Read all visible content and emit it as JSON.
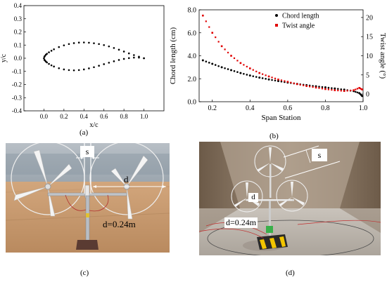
{
  "panels": {
    "a": {
      "label": "(a)",
      "chart_data": {
        "type": "scatter",
        "xlabel": "x/c",
        "ylabel": "y/c",
        "xlim": [
          -0.2,
          1.2
        ],
        "ylim": [
          -0.4,
          0.4
        ],
        "xticks": [
          "0.0",
          "0.2",
          "0.4",
          "0.6",
          "0.8",
          "1.0"
        ],
        "yticks": [
          "-0.4",
          "-0.3",
          "-0.2",
          "-0.1",
          "0.0",
          "0.1",
          "0.2",
          "0.3",
          "0.4"
        ],
        "x": [
          1.0,
          0.95,
          0.9,
          0.85,
          0.8,
          0.75,
          0.7,
          0.65,
          0.6,
          0.55,
          0.5,
          0.45,
          0.4,
          0.35,
          0.3,
          0.25,
          0.2,
          0.15,
          0.1,
          0.075,
          0.05,
          0.03,
          0.02,
          0.01,
          0.005,
          0.0,
          0.005,
          0.01,
          0.02,
          0.03,
          0.05,
          0.075,
          0.1,
          0.15,
          0.2,
          0.25,
          0.3,
          0.35,
          0.4,
          0.45,
          0.5,
          0.55,
          0.6,
          0.65,
          0.7,
          0.75,
          0.8,
          0.85,
          0.9,
          0.95,
          1.0
        ],
        "y": [
          0.0,
          0.012,
          0.024,
          0.037,
          0.051,
          0.065,
          0.078,
          0.09,
          0.1,
          0.108,
          0.114,
          0.118,
          0.12,
          0.119,
          0.115,
          0.108,
          0.098,
          0.085,
          0.068,
          0.057,
          0.045,
          0.034,
          0.027,
          0.018,
          0.012,
          0.0,
          -0.012,
          -0.017,
          -0.025,
          -0.032,
          -0.043,
          -0.054,
          -0.063,
          -0.076,
          -0.085,
          -0.09,
          -0.092,
          -0.09,
          -0.085,
          -0.077,
          -0.068,
          -0.057,
          -0.045,
          -0.034,
          -0.023,
          -0.013,
          -0.005,
          0.001,
          0.005,
          0.005,
          0.0
        ]
      }
    },
    "b": {
      "label": "(b)",
      "chart_data": {
        "type": "scatter",
        "xlabel": "Span Station",
        "ylabel": "Chord length (cm)",
        "y2label": "Twist angle (°)",
        "xlim": [
          0.13,
          1.0
        ],
        "ylim": [
          0.0,
          8.0
        ],
        "y2lim": [
          -2.0,
          22.0
        ],
        "xticks": [
          "0.2",
          "0.4",
          "0.6",
          "0.8",
          "1.0"
        ],
        "yticks": [
          "0.0",
          "2.0",
          "4.0",
          "6.0",
          "8.0"
        ],
        "y2ticks": [
          "0",
          "5",
          "10",
          "15",
          "20"
        ],
        "legend_position": "top-right",
        "series": [
          {
            "name": "Chord length",
            "axis": "left",
            "color": "#000000",
            "x": [
              0.15,
              0.2,
              0.25,
              0.3,
              0.35,
              0.4,
              0.45,
              0.5,
              0.55,
              0.6,
              0.65,
              0.7,
              0.75,
              0.8,
              0.85,
              0.9,
              0.95,
              0.98,
              0.995
            ],
            "y": [
              3.6,
              3.3,
              3.0,
              2.75,
              2.5,
              2.28,
              2.1,
              1.94,
              1.8,
              1.67,
              1.55,
              1.44,
              1.34,
              1.25,
              1.15,
              1.05,
              0.92,
              0.75,
              0.5
            ]
          },
          {
            "name": "Twist angle",
            "axis": "right",
            "color": "#e00000",
            "x": [
              0.15,
              0.2,
              0.25,
              0.3,
              0.35,
              0.4,
              0.45,
              0.5,
              0.55,
              0.6,
              0.65,
              0.7,
              0.75,
              0.8,
              0.85,
              0.9,
              0.95,
              0.98,
              0.995
            ],
            "y": [
              20.5,
              16.0,
              12.5,
              10.0,
              8.1,
              6.7,
              5.5,
              4.6,
              3.8,
              3.2,
              2.6,
              2.1,
              1.7,
              1.3,
              1.0,
              0.8,
              1.0,
              1.6,
              1.2
            ]
          }
        ]
      }
    },
    "c": {
      "label": "(c)",
      "annotations": {
        "s": "s",
        "d": "d",
        "spacing": "d=0.24m"
      }
    },
    "d": {
      "label": "(d)",
      "annotations": {
        "s": "s",
        "d": "d",
        "spacing": "d=0.24m"
      }
    }
  }
}
